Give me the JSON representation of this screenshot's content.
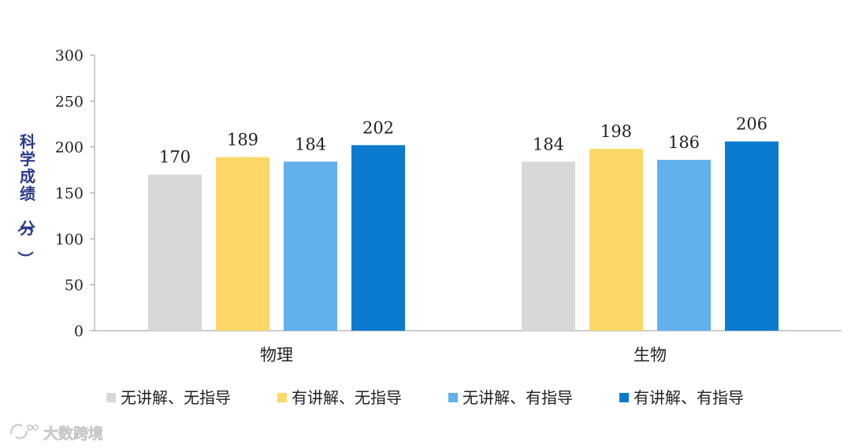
{
  "chart_data": {
    "type": "bar",
    "title": "",
    "xlabel": "",
    "ylabel": "科学成绩（分）",
    "ylim": [
      0,
      300
    ],
    "yticks": [
      0,
      50,
      100,
      150,
      200,
      250,
      300
    ],
    "categories": [
      "物理",
      "生物"
    ],
    "series": [
      {
        "name": "无讲解、无指导",
        "color": "#d8d8d8",
        "values": [
          170,
          184
        ]
      },
      {
        "name": "有讲解、无指导",
        "color": "#fdd868",
        "values": [
          189,
          198
        ]
      },
      {
        "name": "无讲解、有指导",
        "color": "#62b0ec",
        "values": [
          184,
          186
        ]
      },
      {
        "name": "有讲解、有指导",
        "color": "#0a7bcf",
        "values": [
          202,
          206
        ]
      }
    ],
    "grid": false,
    "legend_position": "bottom"
  },
  "watermark": {
    "text": "大数跨境",
    "icon": "logo-icon"
  }
}
